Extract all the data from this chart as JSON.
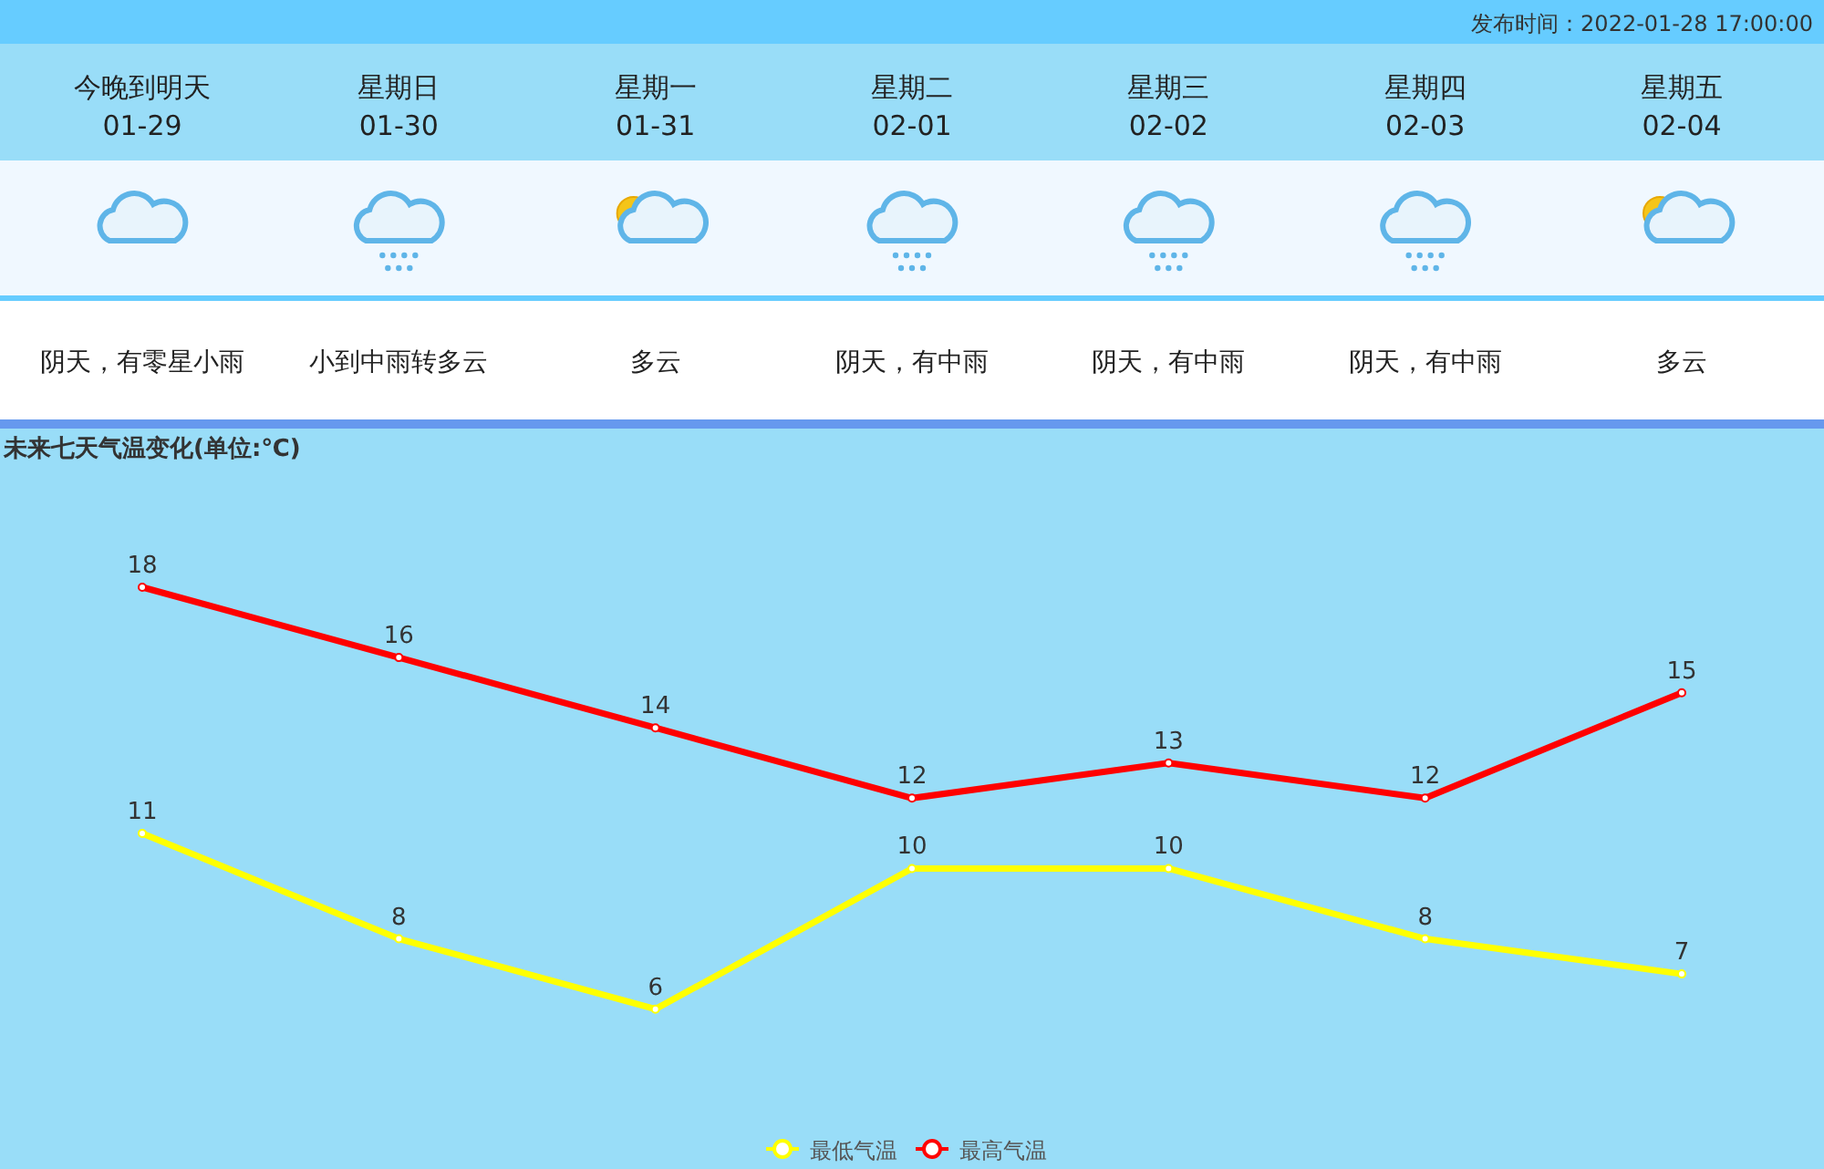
{
  "chart_data": [
    {
      "type": "other",
      "annotations": [
        "发布时间：2022-01-28 17:00:00",
        "今晚到明天",
        "01-29",
        "阴天，有零星小雨",
        "星期日",
        "01-30",
        "小到中雨转多云",
        "星期一",
        "01-31",
        "多云",
        "星期二",
        "02-01",
        "阴天，有中雨",
        "星期三",
        "02-02",
        "阴天，有中雨",
        "星期四",
        "02-03",
        "阴天，有中雨",
        "星期五",
        "02-04",
        "多云"
      ]
    },
    {
      "type": "line",
      "title": "未来七天气温变化(单位:℃)",
      "categories": [
        null,
        null,
        null,
        null,
        null,
        null,
        null
      ],
      "series": [
        {
          "name": "最低气温",
          "color": "#ffff00",
          "values": [
            11,
            8,
            6,
            10,
            10,
            8,
            7
          ]
        },
        {
          "name": "最高气温",
          "color": "#ff0000",
          "values": [
            18,
            16,
            14,
            12,
            13,
            12,
            15
          ]
        }
      ],
      "data_labels": true,
      "legend": "bottom",
      "marker": "circle"
    }
  ]
}
